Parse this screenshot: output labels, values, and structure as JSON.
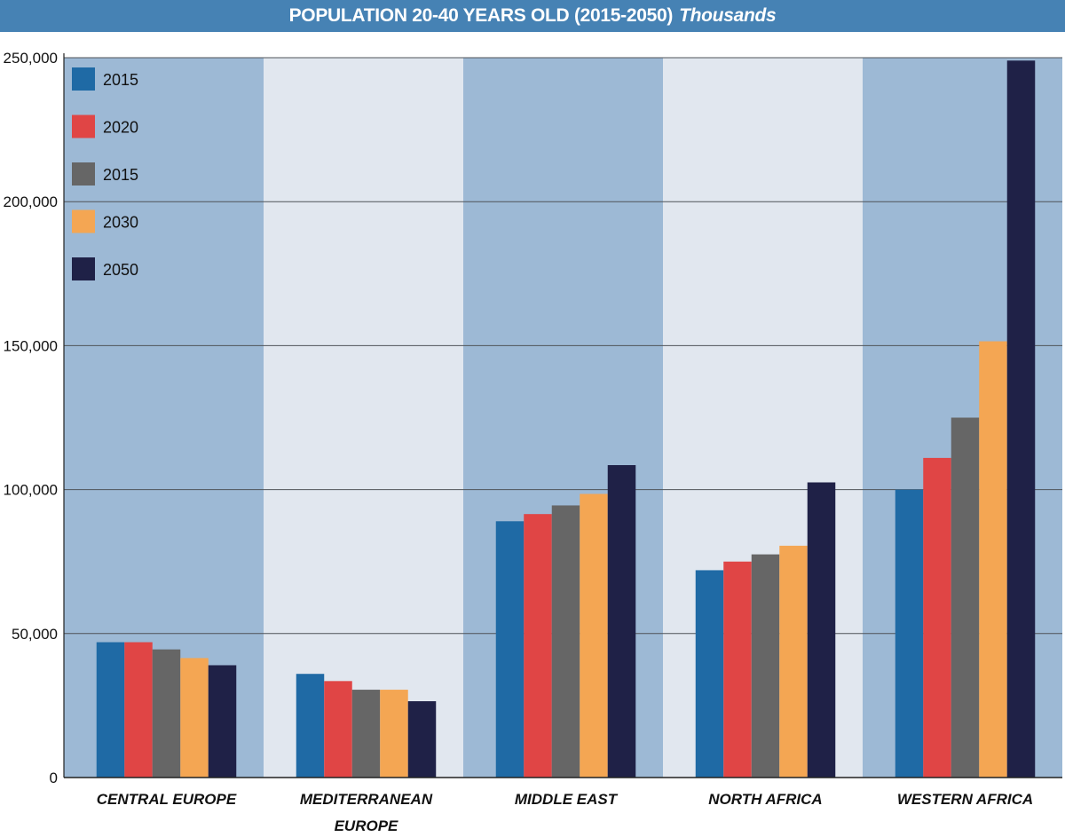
{
  "chart_data": {
    "type": "bar",
    "title": "POPULATION 20-40 YEARS OLD (2015-2050)",
    "subtitle": "Thousands",
    "xlabel": "",
    "ylabel": "",
    "ylim": [
      0,
      250000
    ],
    "yticks": [
      0,
      50000,
      100000,
      150000,
      200000,
      250000
    ],
    "ytick_labels": [
      "0",
      "50,000",
      "100,000",
      "150,000",
      "200,000",
      "250,000"
    ],
    "grid": true,
    "legend_position": "top-left",
    "categories": [
      [
        "CENTRAL EUROPE"
      ],
      [
        "MEDITERRANEAN",
        "EUROPE"
      ],
      [
        "MIDDLE EAST"
      ],
      [
        "NORTH AFRICA"
      ],
      [
        "WESTERN AFRICA"
      ]
    ],
    "series": [
      {
        "name": "2015",
        "color": "#1f6aa5",
        "values": [
          47000,
          36000,
          89000,
          72000,
          100000
        ]
      },
      {
        "name": "2020",
        "color": "#e04545",
        "values": [
          47000,
          33500,
          91500,
          75000,
          111000
        ]
      },
      {
        "name": "2015",
        "color": "#666666",
        "values": [
          44500,
          30500,
          94500,
          77500,
          125000
        ]
      },
      {
        "name": "2030",
        "color": "#f4a653",
        "values": [
          41500,
          30500,
          98500,
          80500,
          151500
        ]
      },
      {
        "name": "2050",
        "color": "#1f2147",
        "values": [
          39000,
          26500,
          108500,
          102500,
          249000
        ]
      }
    ],
    "band_colors": [
      "#9db9d5",
      "#e1e7ef"
    ]
  }
}
